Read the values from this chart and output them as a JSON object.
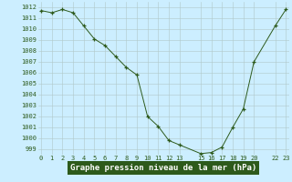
{
  "x": [
    0,
    1,
    2,
    3,
    4,
    5,
    6,
    7,
    8,
    9,
    10,
    11,
    12,
    13,
    15,
    16,
    17,
    18,
    19,
    20,
    22,
    23
  ],
  "y": [
    1011.7,
    1011.5,
    1011.8,
    1011.5,
    1010.3,
    1009.1,
    1008.5,
    1007.5,
    1006.5,
    1005.8,
    1002.0,
    1001.1,
    999.8,
    999.4,
    998.6,
    998.7,
    999.2,
    1001.0,
    1002.7,
    1007.0,
    1010.3,
    1011.8
  ],
  "xticks": [
    0,
    1,
    2,
    3,
    4,
    5,
    6,
    7,
    8,
    9,
    10,
    11,
    12,
    13,
    15,
    16,
    17,
    18,
    19,
    20,
    22,
    23
  ],
  "xticklabels": [
    "0",
    "1",
    "2",
    "3",
    "4",
    "5",
    "6",
    "7",
    "8",
    "9",
    "10",
    "11",
    "12",
    "13",
    "15",
    "16",
    "17",
    "18",
    "19",
    "20",
    "22",
    "23"
  ],
  "yticks": [
    999,
    1000,
    1001,
    1002,
    1003,
    1004,
    1005,
    1006,
    1007,
    1008,
    1009,
    1010,
    1011,
    1012
  ],
  "yticklabels": [
    "999",
    "1000",
    "1001",
    "1002",
    "1003",
    "1004",
    "1005",
    "1006",
    "1007",
    "1008",
    "1009",
    "1010",
    "1011",
    "1012"
  ],
  "ylim": [
    998.5,
    1012.5
  ],
  "xlim": [
    -0.3,
    23.3
  ],
  "line_color": "#2d5a1b",
  "marker": "+",
  "bg_color": "#cceeff",
  "grid_color": "#b0c8c8",
  "tick_color": "#2d5a1b",
  "tick_fontsize": 5.0,
  "xlabel": "Graphe pression niveau de la mer (hPa)",
  "xlabel_fontsize": 6.5,
  "xlabel_color": "#ffffff",
  "label_bg": "#2d5a1b"
}
